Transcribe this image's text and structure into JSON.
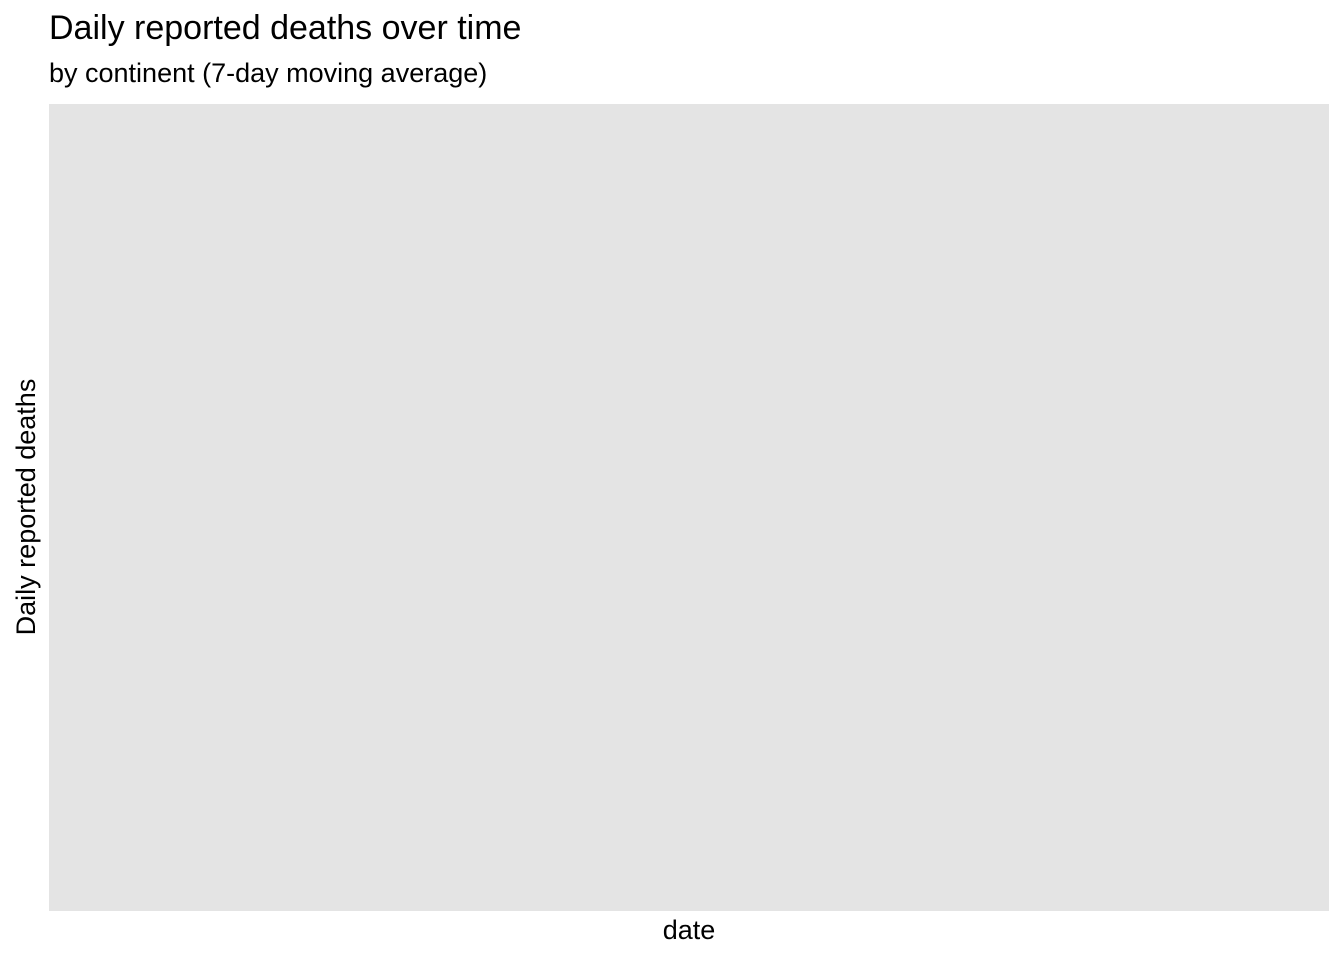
{
  "chart_data": {
    "type": "line",
    "title": "Daily reported deaths over time",
    "subtitle": "by continent (7-day moving average)",
    "xlabel": "date",
    "ylabel": "Daily reported deaths",
    "series": [],
    "grid": false,
    "legend": "none",
    "panel_color": "#e4e4e4"
  }
}
